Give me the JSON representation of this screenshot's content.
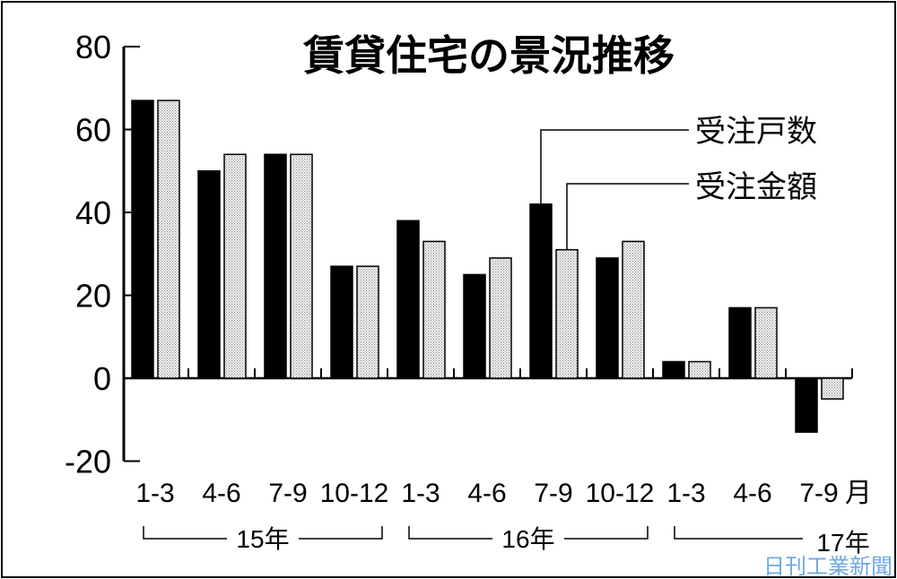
{
  "chart_data": {
    "type": "bar",
    "title": "賃貸住宅の景況推移",
    "categories": [
      "1-3",
      "4-6",
      "7-9",
      "10-12",
      "1-3",
      "4-6",
      "7-9",
      "10-12",
      "1-3",
      "4-6",
      "7-9"
    ],
    "category_unit": "月",
    "year_groups": [
      {
        "label": "15年",
        "count": 4
      },
      {
        "label": "16年",
        "count": 4
      },
      {
        "label": "17年",
        "count": 3
      }
    ],
    "series": [
      {
        "name": "受注戸数",
        "color": "#000000",
        "fill": "solid",
        "values": [
          67,
          50,
          54,
          27,
          38,
          25,
          42,
          29,
          4,
          17,
          -13
        ]
      },
      {
        "name": "受注金額",
        "color": "#d0d0d0",
        "fill": "dotted",
        "values": [
          67,
          54,
          54,
          27,
          33,
          29,
          31,
          33,
          4,
          17,
          -5
        ]
      }
    ],
    "ylim": [
      -20,
      80
    ],
    "yticks": [
      80,
      60,
      40,
      20,
      0,
      -20
    ],
    "grid": false,
    "legend": "top-right, leader lines"
  },
  "watermark": "日刊工業新聞"
}
